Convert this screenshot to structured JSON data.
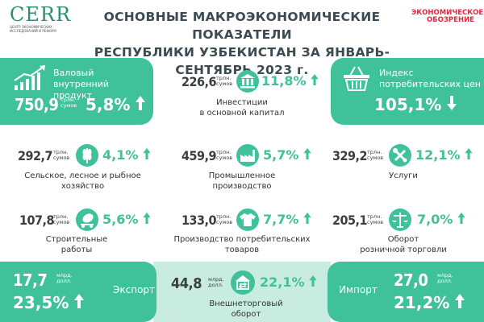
{
  "header": {
    "logo": "CERR",
    "logo_sub": "ЦЕНТР ЭКОНОМИЧЕСКИХ ИССЛЕДОВАНИЙ И РЕФОРМ",
    "title_line1": "ОСНОВНЫЕ МАКРОЭКОНОМИЧЕСКИЕ ПОКАЗАТЕЛИ",
    "title_line2": "РЕСПУБЛИКИ УЗБЕКИСТАН ЗА ЯНВАРЬ-СЕНТЯБРЬ 2023 г.",
    "eo_line1": "ЭКОНОМИЧЕСКОЕ",
    "eo_line2": "ОБОЗРЕНИЕ"
  },
  "gdp": {
    "label1": "Валовый внутренний",
    "label2": "продукт",
    "value": "750,9",
    "unit1": "трлн.",
    "unit2": "сумов",
    "pct": "5,8%",
    "trend": "up",
    "icon": "growth-chart-icon"
  },
  "investments": {
    "value": "226,6",
    "unit1": "трлн.",
    "unit2": "сумов",
    "pct": "11,8%",
    "trend": "up",
    "label1": "Инвестиции",
    "label2": "в основной капитал",
    "icon": "bank-icon"
  },
  "cpi": {
    "label1": "Индекс",
    "label2": "потребительских цен",
    "pct": "105,1%",
    "trend": "down",
    "icon": "basket-icon"
  },
  "agriculture": {
    "value": "292,7",
    "unit1": "трлн.",
    "unit2": "сумов",
    "pct": "4,1%",
    "trend": "up",
    "label1": "Сельское, лесное и рыбное",
    "label2": "хозяйство",
    "icon": "wheat-icon"
  },
  "industry": {
    "value": "459,9",
    "unit1": "трлн.",
    "unit2": "сумов",
    "pct": "5,7%",
    "trend": "up",
    "label1": "Промышленное",
    "label2": "производство",
    "icon": "factory-icon"
  },
  "services": {
    "value": "329,2",
    "unit1": "трлн.",
    "unit2": "сумов",
    "pct": "12,1%",
    "trend": "up",
    "label1": "Услуги",
    "label2": "",
    "icon": "tools-icon"
  },
  "construction": {
    "value": "107,8",
    "unit1": "трлн.",
    "unit2": "сумов",
    "pct": "5,6%",
    "trend": "up",
    "label1": "Строительные",
    "label2": "работы",
    "icon": "cement-mixer-icon"
  },
  "consumer_goods": {
    "value": "133,0",
    "unit1": "трлн.",
    "unit2": "сумов",
    "pct": "7,7%",
    "trend": "up",
    "label1": "Производство потребительских",
    "label2": "товаров",
    "icon": "tshirt-icon"
  },
  "retail": {
    "value": "205,1",
    "unit1": "трлн.",
    "unit2": "сумов",
    "pct": "7,0%",
    "trend": "up",
    "label1": "Оборот",
    "label2": "розничной торговли",
    "icon": "scales-icon"
  },
  "export": {
    "value": "17,7",
    "unit1": "млрд.",
    "unit2": "долл.",
    "pct": "23,5%",
    "trend": "up",
    "label": "Экспорт"
  },
  "trade": {
    "value": "44,8",
    "unit1": "млрд.",
    "unit2": "долл.",
    "pct": "22,1%",
    "trend": "up",
    "label1": "Внешнеторговый",
    "label2": "оборот",
    "icon": "trade-house-icon"
  },
  "import": {
    "value": "27,0",
    "unit1": "млрд.",
    "unit2": "долл.",
    "pct": "21,2%",
    "trend": "up",
    "label": "Импорт"
  },
  "colors": {
    "accent": "#3fc19a",
    "title": "#3c4a52",
    "brand_red": "#e0293e",
    "light_band": "#c8ece0"
  }
}
